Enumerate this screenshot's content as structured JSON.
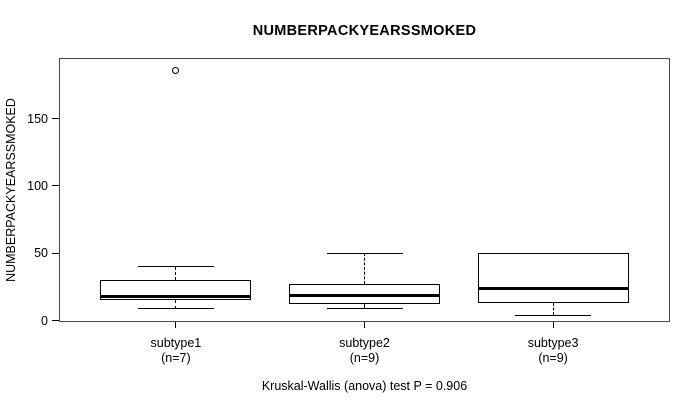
{
  "chart_data": {
    "type": "boxplot",
    "title": "NUMBERPACKYEARSSMOKED",
    "ylabel": "NUMBERPACKYEARSSMOKED",
    "xlabel": "",
    "caption": "Kruskal-Wallis (anova) test P = 0.906",
    "test": {
      "name": "Kruskal-Wallis (anova) test",
      "p_value": 0.906
    },
    "ylim": [
      -1,
      195
    ],
    "yticks": [
      0,
      50,
      100,
      150
    ],
    "grid": false,
    "legend": null,
    "groups": [
      {
        "label": "subtype1",
        "sublabel": "(n=7)",
        "n": 7,
        "stats": {
          "whisker_low": 9,
          "q1": 15,
          "median": 18,
          "q3": 30,
          "whisker_high": 40
        },
        "outliers": [
          186
        ]
      },
      {
        "label": "subtype2",
        "sublabel": "(n=9)",
        "n": 9,
        "stats": {
          "whisker_low": 9,
          "q1": 12,
          "median": 19,
          "q3": 27,
          "whisker_high": 50
        },
        "outliers": []
      },
      {
        "label": "subtype3",
        "sublabel": "(n=9)",
        "n": 9,
        "stats": {
          "whisker_low": 4,
          "q1": 13,
          "median": 24,
          "q3": 50,
          "whisker_high": 50
        },
        "outliers": []
      }
    ],
    "colors": {
      "line": "#000000",
      "frame": "#4a4a4a",
      "background": "#ffffff"
    }
  }
}
